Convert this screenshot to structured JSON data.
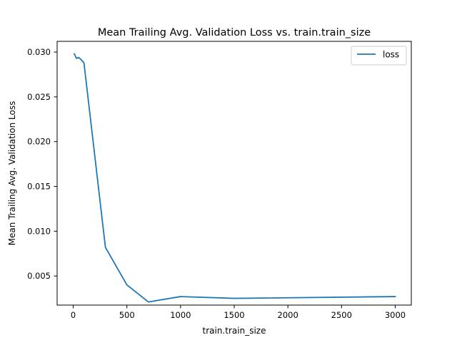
{
  "chart_data": {
    "type": "line",
    "title": "Mean Trailing Avg. Validation Loss vs. train.train_size",
    "xlabel": "train.train_size",
    "ylabel": "Mean Trailing Avg. Validation Loss",
    "xlim": [
      -150,
      3150
    ],
    "ylim": [
      0.00175,
      0.0312
    ],
    "x_ticks": [
      0,
      500,
      1000,
      1500,
      2000,
      2500,
      3000
    ],
    "y_ticks": [
      0.005,
      0.01,
      0.015,
      0.02,
      0.025,
      0.03
    ],
    "x_tick_labels": [
      "0",
      "500",
      "1000",
      "1500",
      "2000",
      "2500",
      "3000"
    ],
    "y_tick_labels": [
      "0.005",
      "0.010",
      "0.015",
      "0.020",
      "0.025",
      "0.030"
    ],
    "grid": false,
    "legend_position": "top-right",
    "series": [
      {
        "name": "loss",
        "color": "#1f77b4",
        "x": [
          10,
          30,
          50,
          70,
          100,
          300,
          500,
          700,
          1000,
          1500,
          3000
        ],
        "y": [
          0.0298,
          0.0293,
          0.0294,
          0.0292,
          0.0288,
          0.0082,
          0.004,
          0.0021,
          0.0027,
          0.0025,
          0.0027
        ]
      }
    ]
  }
}
